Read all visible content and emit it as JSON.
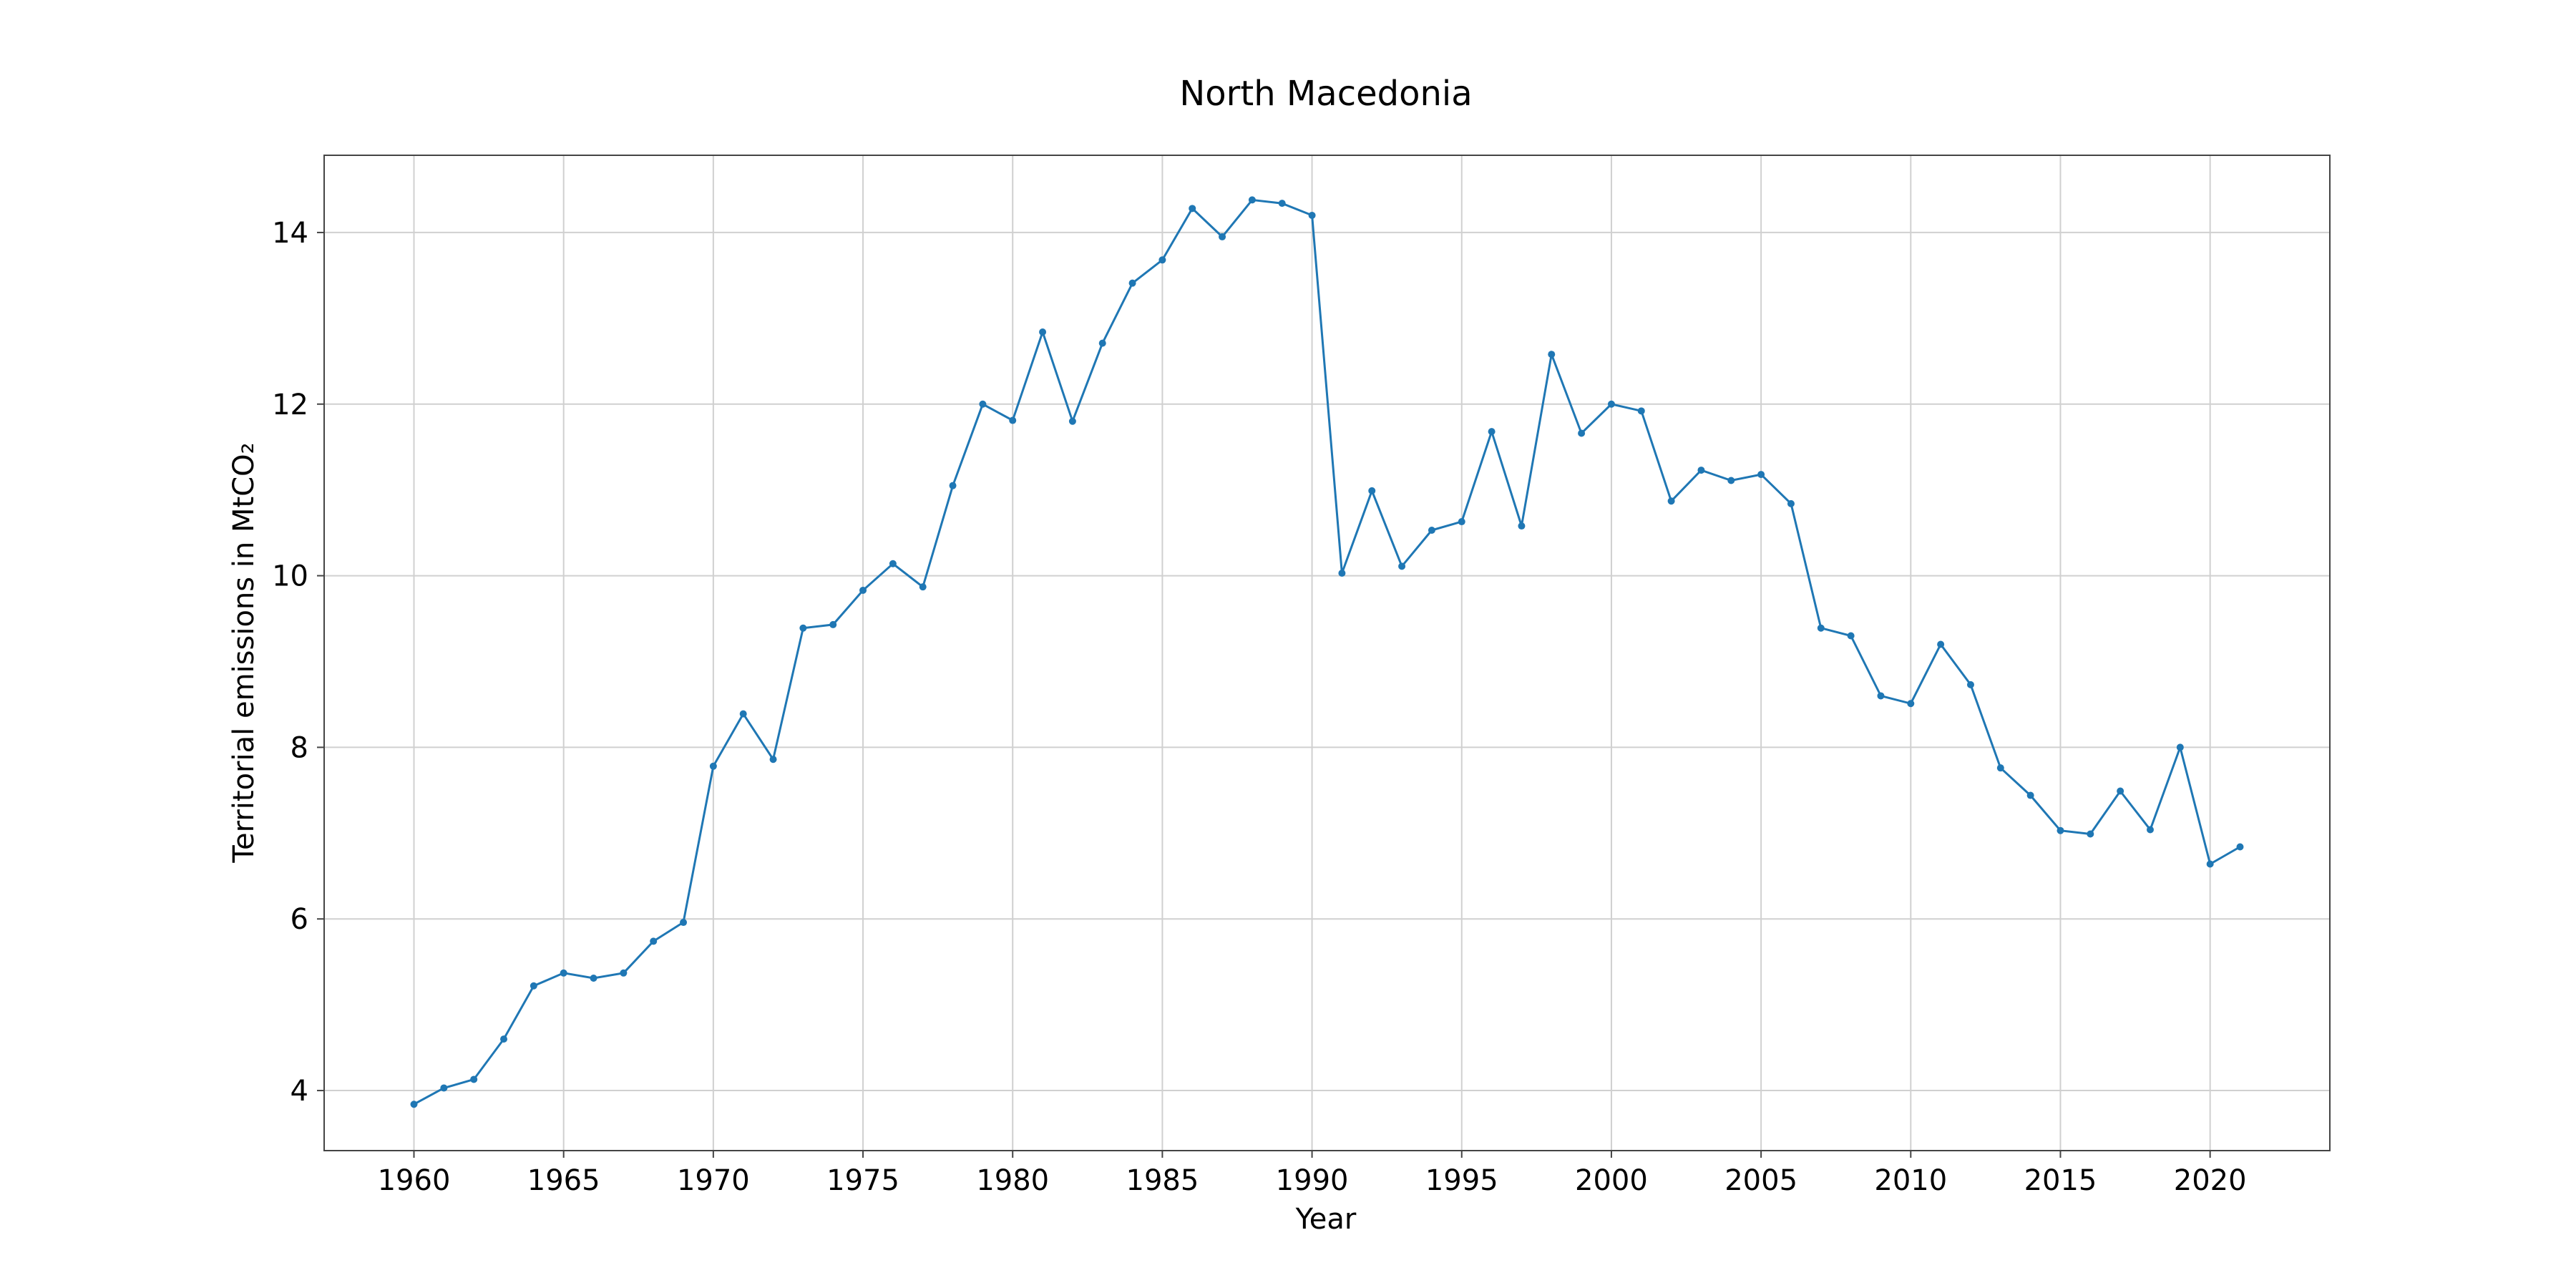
{
  "chart_data": {
    "type": "line",
    "title": "North Macedonia",
    "xlabel": "Year",
    "ylabel": "Territorial emissions in MtCO₂",
    "xlim": [
      1957,
      2024
    ],
    "ylim": [
      3.3,
      14.9
    ],
    "xticks": [
      1960,
      1965,
      1970,
      1975,
      1980,
      1985,
      1990,
      1995,
      2000,
      2005,
      2010,
      2015,
      2020
    ],
    "yticks": [
      4,
      6,
      8,
      10,
      12,
      14
    ],
    "grid": true,
    "colors": {
      "series": "#1f77b4"
    },
    "x": [
      1960,
      1961,
      1962,
      1963,
      1964,
      1965,
      1966,
      1967,
      1968,
      1969,
      1970,
      1971,
      1972,
      1973,
      1974,
      1975,
      1976,
      1977,
      1978,
      1979,
      1980,
      1981,
      1982,
      1983,
      1984,
      1985,
      1986,
      1987,
      1988,
      1989,
      1990,
      1991,
      1992,
      1993,
      1994,
      1995,
      1996,
      1997,
      1998,
      1999,
      2000,
      2001,
      2002,
      2003,
      2004,
      2005,
      2006,
      2007,
      2008,
      2009,
      2010,
      2011,
      2012,
      2013,
      2014,
      2015,
      2016,
      2017,
      2018,
      2019,
      2020,
      2021
    ],
    "y": [
      3.84,
      4.03,
      4.13,
      4.6,
      5.22,
      5.37,
      5.31,
      5.37,
      5.74,
      5.96,
      7.78,
      8.39,
      7.86,
      9.39,
      9.43,
      9.83,
      10.14,
      9.87,
      11.05,
      12.0,
      11.81,
      12.84,
      11.8,
      12.71,
      13.41,
      13.68,
      14.28,
      13.95,
      14.38,
      14.34,
      14.2,
      10.03,
      10.99,
      10.11,
      10.53,
      10.63,
      11.68,
      10.58,
      12.58,
      11.66,
      12.0,
      11.92,
      10.87,
      11.23,
      11.11,
      11.18,
      10.84,
      9.39,
      9.3,
      8.6,
      8.51,
      9.2,
      8.73,
      7.76,
      7.44,
      7.03,
      6.99,
      7.49,
      7.04,
      8.0,
      6.64,
      6.84
    ]
  }
}
